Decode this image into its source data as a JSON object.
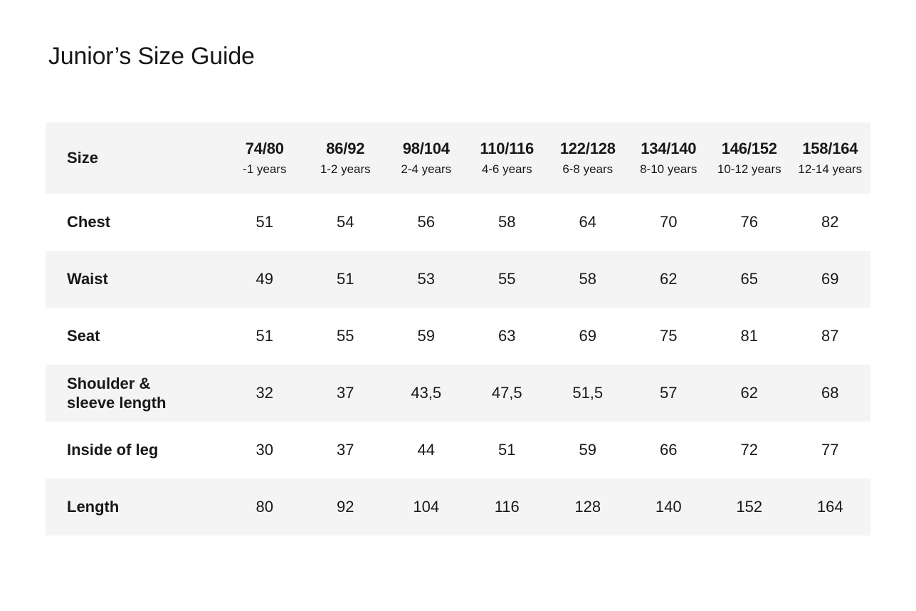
{
  "page": {
    "title": "Junior’s Size Guide",
    "background": "#ffffff",
    "stripe_color": "#f4f4f4",
    "text_color": "#181818"
  },
  "chart_data": {
    "type": "table",
    "title": "Junior’s Size Guide",
    "header": {
      "label": "Size",
      "columns": [
        {
          "size": "74/80",
          "age": "-1 years"
        },
        {
          "size": "86/92",
          "age": "1-2 years"
        },
        {
          "size": "98/104",
          "age": "2-4 years"
        },
        {
          "size": "110/116",
          "age": "4-6 years"
        },
        {
          "size": "122/128",
          "age": "6-8 years"
        },
        {
          "size": "134/140",
          "age": "8-10 years"
        },
        {
          "size": "146/152",
          "age": "10-12 years"
        },
        {
          "size": "158/164",
          "age": "12-14 years"
        }
      ]
    },
    "rows": [
      {
        "label": "Chest",
        "values": [
          "51",
          "54",
          "56",
          "58",
          "64",
          "70",
          "76",
          "82"
        ]
      },
      {
        "label": "Waist",
        "values": [
          "49",
          "51",
          "53",
          "55",
          "58",
          "62",
          "65",
          "69"
        ]
      },
      {
        "label": "Seat",
        "values": [
          "51",
          "55",
          "59",
          "63",
          "69",
          "75",
          "81",
          "87"
        ]
      },
      {
        "label": "Shoulder &\nsleeve length",
        "values": [
          "32",
          "37",
          "43,5",
          "47,5",
          "51,5",
          "57",
          "62",
          "68"
        ]
      },
      {
        "label": "Inside of leg",
        "values": [
          "30",
          "37",
          "44",
          "51",
          "59",
          "66",
          "72",
          "77"
        ]
      },
      {
        "label": "Length",
        "values": [
          "80",
          "92",
          "104",
          "116",
          "128",
          "140",
          "152",
          "164"
        ]
      }
    ]
  }
}
